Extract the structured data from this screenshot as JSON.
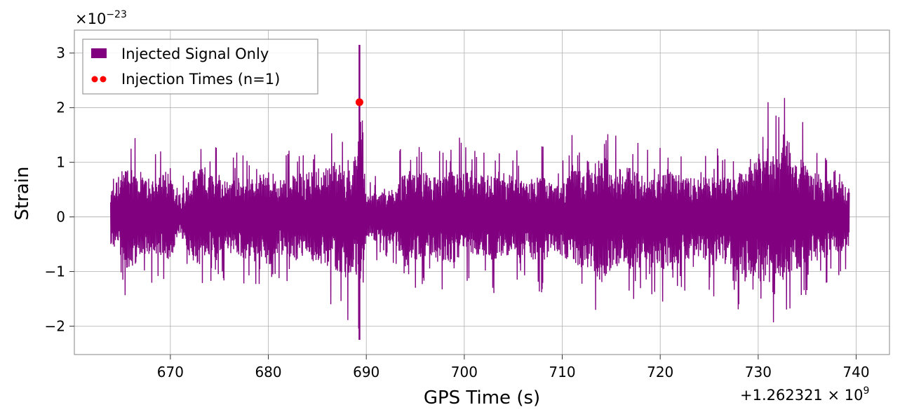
{
  "chart_data": {
    "type": "line",
    "xlabel": "GPS Time (s)",
    "ylabel": "Strain",
    "x_offset_label": "+1.262321",
    "x_offset_exp": "9",
    "y_scale_label": "×10",
    "y_scale_exp": "−23",
    "xlim": [
      660.2,
      743.4
    ],
    "ylim": [
      -2.52,
      3.42
    ],
    "xticks": [
      670,
      680,
      690,
      700,
      710,
      720,
      730,
      740
    ],
    "xtick_labels": [
      "670",
      "680",
      "690",
      "700",
      "710",
      "720",
      "730",
      "740"
    ],
    "yticks": [
      -2,
      -1,
      0,
      1,
      2,
      3
    ],
    "ytick_labels": [
      "−2",
      "−1",
      "0",
      "1",
      "2",
      "3"
    ],
    "grid": true,
    "legend_position": "top-left",
    "series": [
      {
        "name": "Injected Signal Only",
        "color": "#800080",
        "kind": "line",
        "x_range": [
          663.9,
          739.3
        ],
        "envelope": {
          "x": [
            663.9,
            665,
            666,
            667,
            668,
            669,
            670,
            671,
            672,
            673,
            674,
            675,
            676,
            677,
            678,
            679,
            680,
            681,
            682,
            683,
            684,
            685,
            686,
            687,
            688,
            689,
            689.4,
            690,
            691,
            692,
            693,
            694,
            695,
            696,
            697,
            698,
            699,
            700,
            701,
            702,
            703,
            704,
            705,
            706,
            707,
            708,
            709,
            710,
            711,
            712,
            713,
            714,
            715,
            716,
            717,
            718,
            719,
            720,
            721,
            722,
            723,
            724,
            725,
            726,
            727,
            728,
            729,
            730,
            731,
            732,
            733,
            734,
            735,
            736,
            737,
            738,
            739.3
          ],
          "upper": [
            0.8,
            1.4,
            1.6,
            1.2,
            1.1,
            1.2,
            1.6,
            0.6,
            1.2,
            1.65,
            1.4,
            1.2,
            1.1,
            1.2,
            1.2,
            1.1,
            1.55,
            1.1,
            1.2,
            1.3,
            1.4,
            1.55,
            1.6,
            1.7,
            1.3,
            1.9,
            3.15,
            0.6,
            0.8,
            0.7,
            1.0,
            1.5,
            1.2,
            1.4,
            1.2,
            1.3,
            1.4,
            1.5,
            1.2,
            1.3,
            1.25,
            1.1,
            1.5,
            1.0,
            1.2,
            1.3,
            0.9,
            1.0,
            1.5,
            1.3,
            1.5,
            1.85,
            1.6,
            1.4,
            1.5,
            1.3,
            1.2,
            1.4,
            1.5,
            1.3,
            1.2,
            1.1,
            1.4,
            1.5,
            1.2,
            1.3,
            1.5,
            1.95,
            2.1,
            1.8,
            2.35,
            1.9,
            1.6,
            1.3,
            1.2,
            1.1,
            0.9
          ],
          "lower": [
            -0.8,
            -1.3,
            -1.65,
            -1.1,
            -1.2,
            -1.25,
            -1.3,
            -0.5,
            -1.2,
            -1.5,
            -1.2,
            -1.3,
            -1.1,
            -1.2,
            -1.3,
            -1.2,
            -1.6,
            -1.1,
            -1.3,
            -1.3,
            -1.2,
            -1.4,
            -1.6,
            -1.6,
            -1.9,
            -1.8,
            -2.25,
            -0.6,
            -0.8,
            -0.7,
            -1.1,
            -1.2,
            -1.3,
            -1.2,
            -1.4,
            -1.3,
            -1.4,
            -1.2,
            -1.1,
            -1.3,
            -1.4,
            -1.1,
            -1.3,
            -1.2,
            -1.3,
            -1.4,
            -1.0,
            -1.2,
            -1.4,
            -1.6,
            -1.5,
            -2.0,
            -1.6,
            -1.4,
            -1.6,
            -1.3,
            -1.4,
            -1.5,
            -1.7,
            -1.4,
            -1.3,
            -1.2,
            -1.5,
            -1.4,
            -1.5,
            -1.7,
            -1.8,
            -1.9,
            -2.1,
            -1.9,
            -1.7,
            -1.6,
            -1.4,
            -1.3,
            -1.2,
            -1.1,
            -0.9
          ]
        }
      },
      {
        "name": "Injection Times (n=1)",
        "color": "#ff0000",
        "kind": "scatter",
        "points": [
          {
            "x": 689.3,
            "y": 2.1
          }
        ]
      }
    ]
  }
}
